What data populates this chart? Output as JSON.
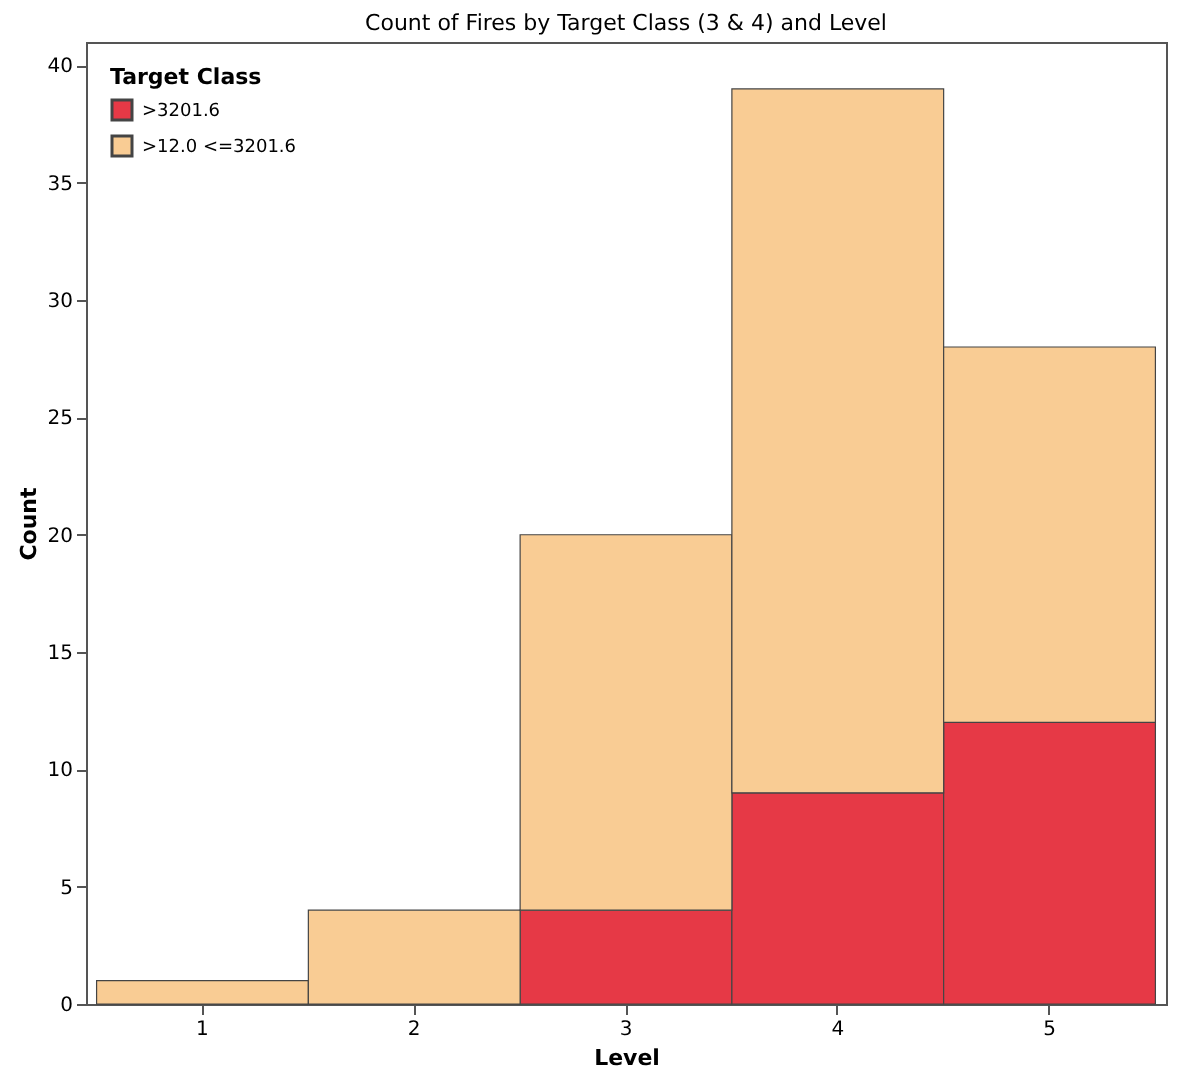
{
  "chart_data": {
    "type": "bar",
    "title": "Count of Fires by Target Class (3 & 4) and Level",
    "xlabel": "Level",
    "ylabel": "Count",
    "legend_title": "Target Class",
    "categories": [
      "1",
      "2",
      "3",
      "4",
      "5"
    ],
    "series": [
      {
        "name": ">3201.6",
        "color": "#e63946",
        "values": [
          0,
          0,
          4,
          9,
          12
        ]
      },
      {
        "name": ">12.0 <=3201.6",
        "color": "#f9cc94",
        "values": [
          1,
          4,
          16,
          30,
          16
        ]
      }
    ],
    "stacked": true,
    "ylim": [
      0,
      41
    ],
    "yticks": [
      0,
      5,
      10,
      15,
      20,
      25,
      30,
      35,
      40
    ],
    "grid": false,
    "legend": "top left"
  }
}
